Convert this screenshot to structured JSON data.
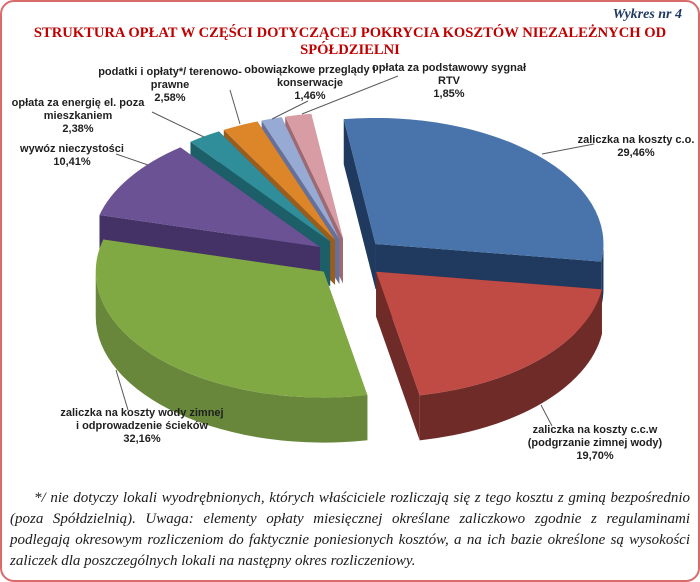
{
  "header": {
    "chart_number": "Wykres nr 4",
    "title": "STRUKTURA OPŁAT W CZĘŚCI DOTYCZĄCEJ POKRYCIA KOSZTÓW NIEZALEŻNYCH OD SPÓŁDZIELNI",
    "title_color": "#C00000",
    "chart_number_color": "#1F3864"
  },
  "frame": {
    "border_color": "#D96B6B",
    "background": "#FFFFFF"
  },
  "chart_data": {
    "type": "pie",
    "style": "3d-exploded",
    "title": "STRUKTURA OPŁAT W CZĘŚCI DOTYCZĄCEJ POKRYCIA KOSZTÓW NIEZALEŻNYCH OD SPÓŁDZIELNI",
    "unit": "%",
    "legend": "none",
    "labels": "outside-with-leader-lines",
    "start_angle_deg": -8,
    "slices": [
      {
        "name": "zaliczka na koszty c.o.",
        "value": 29.46,
        "pct_label": "29,46%",
        "color": "#4874AB",
        "side_color": "#1F3A5E",
        "label_lines": [
          "zaliczka na koszty c.o."
        ]
      },
      {
        "name": "zaliczka na koszty c.c.w (podgrzanie zimnej wody)",
        "value": 19.7,
        "pct_label": "19,70%",
        "color": "#C04A44",
        "side_color": "#6F2B27",
        "label_lines": [
          "zaliczka na koszty c.c.w",
          "(podgrzanie zimnej wody)"
        ]
      },
      {
        "name": "zaliczka na koszty wody zimnej i odprowadzenie ścieków",
        "value": 32.16,
        "pct_label": "32,16%",
        "color": "#80A943",
        "side_color": "#68873A",
        "label_lines": [
          "zaliczka na koszty wody zimnej",
          "i odprowadzenie ścieków"
        ]
      },
      {
        "name": "wywóz nieczystości",
        "value": 10.41,
        "pct_label": "10,41%",
        "color": "#6A5295",
        "side_color": "#443266",
        "label_lines": [
          "wywóz nieczystości"
        ]
      },
      {
        "name": "opłata za energię el. poza mieszkaniem",
        "value": 2.38,
        "pct_label": "2,38%",
        "color": "#2F8E99",
        "side_color": "#1D5F68",
        "label_lines": [
          "opłata za energię el. poza",
          "mieszkaniem"
        ]
      },
      {
        "name": "podatki i opłaty*/ terenowo-prawne",
        "value": 2.58,
        "pct_label": "2,58%",
        "color": "#DC8629",
        "side_color": "#9A5D1E",
        "label_lines": [
          "podatki i opłaty*/ terenowo-",
          "prawne"
        ]
      },
      {
        "name": "obowiązkowe przeglądy i konserwacje",
        "value": 1.46,
        "pct_label": "1,46%",
        "color": "#97AAD3",
        "side_color": "#65719B",
        "label_lines": [
          "obowiązkowe przeglądy i",
          "konserwacje"
        ]
      },
      {
        "name": "opłata za podstawowy sygnał RTV",
        "value": 1.85,
        "pct_label": "1,85%",
        "color": "#D89CA4",
        "side_color": "#9E6970",
        "label_lines": [
          "opłata za podstawowy sygnał",
          "RTV"
        ]
      }
    ]
  },
  "footnote": {
    "text": "*/ nie dotyczy lokali wyodrębnionych, których właściciele rozliczają się z tego kosztu z gminą bezpośrednio (poza Spółdzielnią). Uwaga: elementy opłaty miesięcznej określane zaliczkowo zgodnie z regulaminami podlegają okresowym rozliczeniom do faktycznie poniesionych kosztów, a na ich bazie określone są wysokości zaliczek dla poszczególnych lokali na następny okres rozliczeniowy."
  }
}
